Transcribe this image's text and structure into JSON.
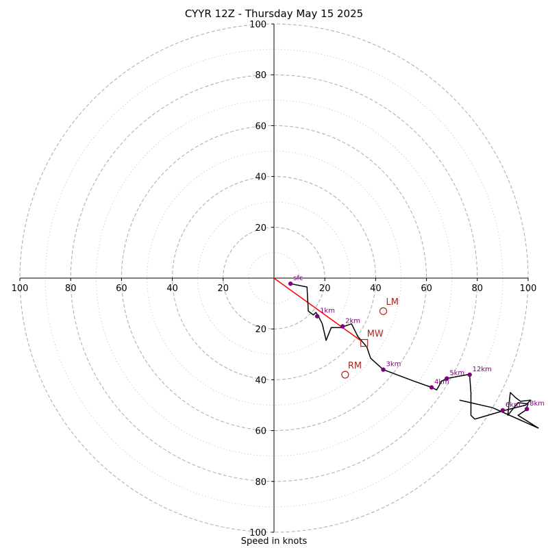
{
  "chart_data": {
    "type": "scatter",
    "title": "CYYR 12Z - Thursday May 15 2025",
    "xlabel": "Speed in knots",
    "ylabel": "",
    "xlim": [
      -100,
      100
    ],
    "ylim": [
      -100,
      100
    ],
    "tick_labels": [
      "100",
      "80",
      "60",
      "40",
      "20",
      "20",
      "40",
      "60",
      "80",
      "100"
    ],
    "tick_values": [
      -100,
      -80,
      -60,
      -40,
      -20,
      20,
      40,
      60,
      80,
      100
    ],
    "ring_radii_dashed": [
      20,
      40,
      60,
      80,
      100
    ],
    "ring_radii_dotted": [
      10,
      30,
      50,
      70,
      90
    ],
    "grid": true,
    "colors": {
      "hodograph": "#000000",
      "height_markers": "#800080",
      "storm_motion": "#b22222",
      "shear_vector": "#ff0000",
      "grid": "#b0b0b0"
    },
    "hodograph_line": [
      [
        6.5,
        -2.2
      ],
      [
        13,
        -3.5
      ],
      [
        13.5,
        -13
      ],
      [
        15.5,
        -14.5
      ],
      [
        16.5,
        -13.5
      ],
      [
        17.5,
        -15
      ],
      [
        19,
        -18
      ],
      [
        20.5,
        -24.5
      ],
      [
        22.5,
        -19.5
      ],
      [
        26,
        -19.5
      ],
      [
        30.5,
        -18
      ],
      [
        33,
        -23
      ],
      [
        36.5,
        -27
      ],
      [
        38,
        -31.5
      ],
      [
        43,
        -36
      ],
      [
        55,
        -40.5
      ],
      [
        62,
        -43
      ],
      [
        64,
        -44
      ],
      [
        66,
        -40.5
      ],
      [
        68,
        -39.5
      ],
      [
        76,
        -38
      ],
      [
        77,
        -38.5
      ],
      [
        77.5,
        -45
      ],
      [
        77.5,
        -54
      ],
      [
        79,
        -55.5
      ],
      [
        91,
        -52
      ],
      [
        99,
        -50
      ],
      [
        101,
        -48
      ],
      [
        97,
        -48.5
      ],
      [
        95,
        -47
      ],
      [
        93,
        -45
      ],
      [
        92,
        -54
      ],
      [
        96,
        -49
      ],
      [
        100,
        -49.5
      ],
      [
        99,
        -52
      ],
      [
        96,
        -54
      ],
      [
        104,
        -59
      ],
      [
        86,
        -51
      ],
      [
        73,
        -48
      ]
    ],
    "height_markers": [
      {
        "label": "sfc",
        "x": 6.5,
        "y": -2.2
      },
      {
        "label": "1km",
        "x": 17,
        "y": -15
      },
      {
        "label": "2km",
        "x": 27,
        "y": -19
      },
      {
        "label": "3km",
        "x": 43,
        "y": -36
      },
      {
        "label": "4km",
        "x": 62,
        "y": -43
      },
      {
        "label": "5km",
        "x": 68,
        "y": -39.5
      },
      {
        "label": "12km",
        "x": 77,
        "y": -38
      },
      {
        "label": "6km",
        "x": 90,
        "y": -52
      },
      {
        "label": "8km",
        "x": 99.5,
        "y": -51.5
      }
    ],
    "storm_motion": [
      {
        "label": "LM",
        "x": 43,
        "y": -13,
        "marker": "circle"
      },
      {
        "label": "MW",
        "x": 35.5,
        "y": -25.5,
        "marker": "square"
      },
      {
        "label": "RM",
        "x": 28,
        "y": -38,
        "marker": "circle"
      }
    ],
    "shear_vector": {
      "x0": 0,
      "y0": 0,
      "x1": 34,
      "y1": -24.5
    }
  }
}
